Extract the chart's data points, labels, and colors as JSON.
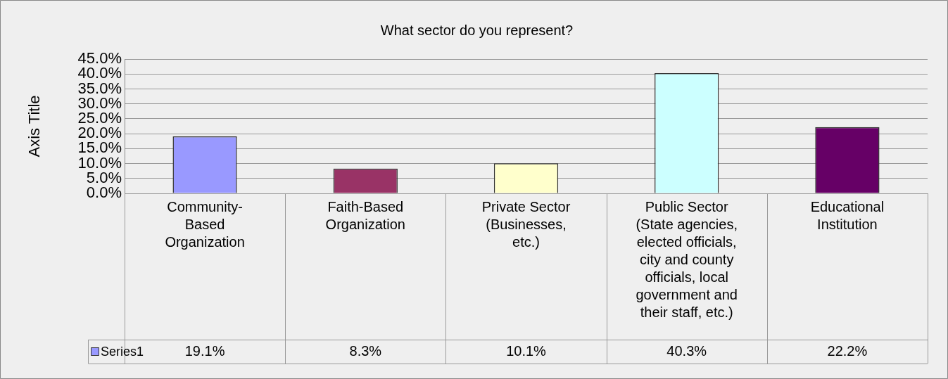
{
  "chart_data": {
    "type": "bar",
    "title": "What sector do you represent?",
    "ylabel": "Axis Title",
    "categories": [
      "Community-Based Organization",
      "Faith-Based Organization",
      "Private Sector (Businesses, etc.)",
      "Public Sector (State agencies, elected officials, city and county officials, local government and their staff, etc.)",
      "Educational Institution"
    ],
    "series": [
      {
        "name": "Series1",
        "color": "#9999ff",
        "colors": [
          "#9999ff",
          "#993366",
          "#ffffcc",
          "#ccffff",
          "#660066"
        ],
        "values": [
          19.1,
          8.3,
          10.1,
          40.3,
          22.2
        ],
        "value_labels": [
          "19.1%",
          "8.3%",
          "10.1%",
          "40.3%",
          "22.2%"
        ]
      }
    ],
    "ylim": [
      0,
      45
    ],
    "yticks": [
      {
        "value": 0,
        "label": "0.0%"
      },
      {
        "value": 5,
        "label": "5.0%"
      },
      {
        "value": 10,
        "label": "10.0%"
      },
      {
        "value": 15,
        "label": "15.0%"
      },
      {
        "value": 20,
        "label": "20.0%"
      },
      {
        "value": 25,
        "label": "25.0%"
      },
      {
        "value": 30,
        "label": "30.0%"
      },
      {
        "value": 35,
        "label": "35.0%"
      },
      {
        "value": 40,
        "label": "40.0%"
      },
      {
        "value": 45,
        "label": "45.0%"
      }
    ],
    "grid": "y",
    "legend": "bottom left"
  }
}
